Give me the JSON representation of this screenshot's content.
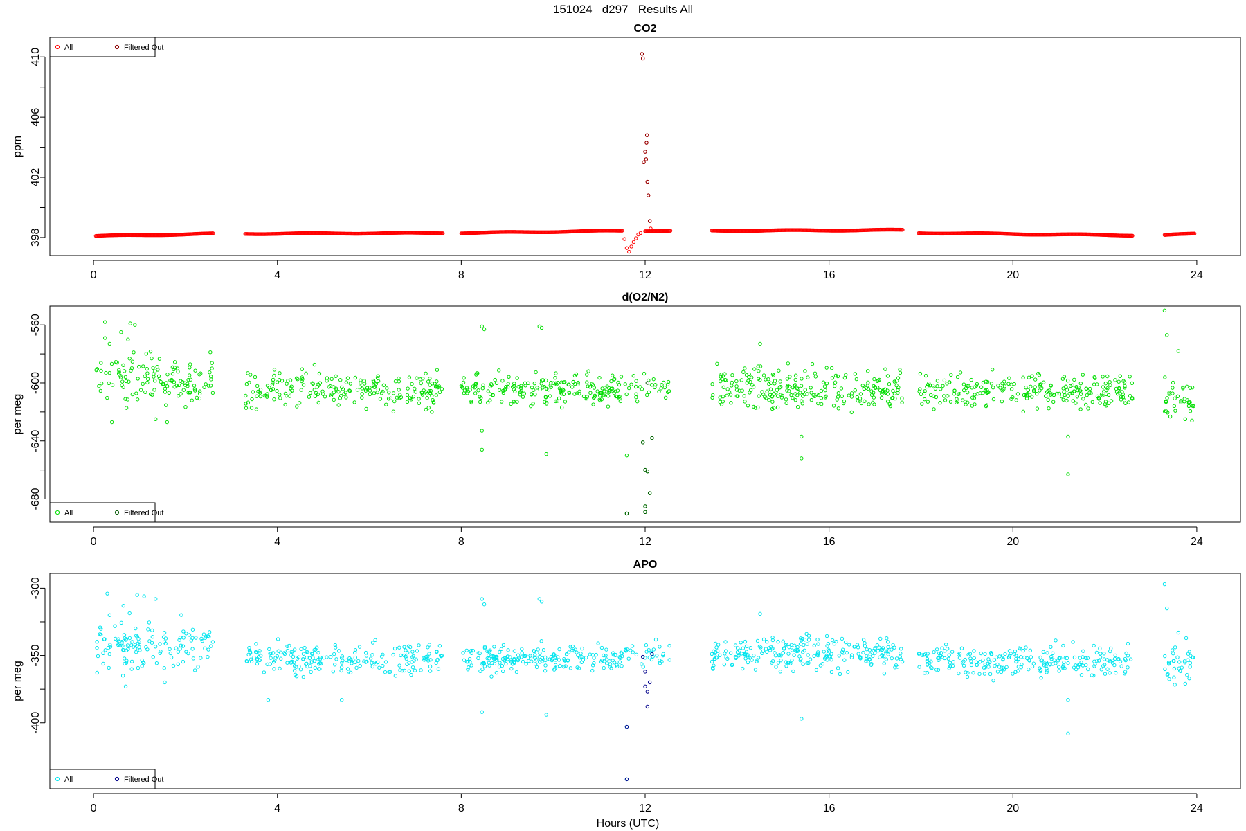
{
  "figure_title": "151024   d297   Results All",
  "xlabel": "Hours (UTC)",
  "chart_data": [
    {
      "type": "scatter",
      "title": "CO2",
      "ylabel": "ppm",
      "xlim": [
        -0.95,
        24.95
      ],
      "ylim": [
        396.8,
        411.3
      ],
      "yticks": [
        398,
        402,
        406,
        410
      ],
      "xticks": [
        0,
        4,
        8,
        12,
        16,
        20,
        24
      ],
      "legend": {
        "position": "top-left",
        "entries": [
          "All",
          "Filtered Out"
        ]
      },
      "colors": {
        "all": "#ff0000",
        "filtered": "#8b0000"
      },
      "base_segments": [
        {
          "x": [
            0.05,
            2.6
          ],
          "y": [
            398.1,
            398.25
          ]
        },
        {
          "x": [
            3.3,
            7.6
          ],
          "y": [
            398.25,
            398.3
          ]
        },
        {
          "x": [
            8.0,
            11.5
          ],
          "y": [
            398.3,
            398.45
          ]
        },
        {
          "x": [
            12.0,
            12.55
          ],
          "y": [
            398.45,
            398.45
          ]
        },
        {
          "x": [
            13.45,
            17.6
          ],
          "y": [
            398.45,
            398.5
          ]
        },
        {
          "x": [
            17.95,
            22.6
          ],
          "y": [
            398.3,
            398.15
          ]
        },
        {
          "x": [
            23.3,
            23.95
          ],
          "y": [
            398.15,
            398.25
          ]
        }
      ],
      "series": [
        {
          "name": "All",
          "points": [
            [
              11.55,
              397.9
            ],
            [
              11.6,
              397.3
            ],
            [
              11.65,
              397.05
            ],
            [
              11.7,
              397.4
            ],
            [
              11.75,
              397.7
            ],
            [
              11.8,
              397.95
            ],
            [
              11.85,
              398.2
            ],
            [
              11.9,
              398.3
            ],
            [
              11.93,
              410.2
            ],
            [
              11.95,
              409.9
            ],
            [
              11.97,
              403.0
            ],
            [
              12.0,
              403.7
            ],
            [
              12.02,
              403.2
            ],
            [
              12.03,
              404.3
            ],
            [
              12.04,
              404.8
            ],
            [
              12.05,
              401.7
            ],
            [
              12.07,
              400.8
            ],
            [
              12.1,
              399.1
            ],
            [
              12.12,
              398.6
            ]
          ]
        },
        {
          "name": "Filtered Out",
          "points": [
            [
              11.93,
              410.2
            ],
            [
              11.95,
              409.9
            ],
            [
              11.97,
              403.0
            ],
            [
              12.0,
              403.7
            ],
            [
              12.02,
              403.2
            ],
            [
              12.03,
              404.3
            ],
            [
              12.04,
              404.8
            ],
            [
              12.05,
              401.7
            ],
            [
              12.07,
              400.8
            ],
            [
              12.1,
              399.1
            ]
          ]
        }
      ]
    },
    {
      "type": "scatter",
      "title": "d(O2/N2)",
      "ylabel": "per meg",
      "xlim": [
        -0.95,
        24.95
      ],
      "ylim": [
        -696,
        -547
      ],
      "yticks": [
        -560,
        -600,
        -640,
        -680
      ],
      "xticks": [
        0,
        4,
        8,
        12,
        16,
        20,
        24
      ],
      "legend": {
        "position": "bottom-left",
        "entries": [
          "All",
          "Filtered Out"
        ]
      },
      "colors": {
        "all": "#00dd00",
        "filtered": "#005500"
      },
      "scatter_segments": [
        {
          "x": [
            0.05,
            2.6
          ],
          "center": -598,
          "spread": 12,
          "n": 130
        },
        {
          "x": [
            3.3,
            7.6
          ],
          "center": -604,
          "spread": 9,
          "n": 210
        },
        {
          "x": [
            8.0,
            11.5
          ],
          "center": -605,
          "spread": 8,
          "n": 200
        },
        {
          "x": [
            11.55,
            12.55
          ],
          "center": -604,
          "spread": 6,
          "n": 30
        },
        {
          "x": [
            13.45,
            17.6
          ],
          "center": -604,
          "spread": 10,
          "n": 240
        },
        {
          "x": [
            17.95,
            22.6
          ],
          "center": -605,
          "spread": 9,
          "n": 240
        },
        {
          "x": [
            23.3,
            23.95
          ],
          "center": -612,
          "spread": 10,
          "n": 35
        }
      ],
      "series": [
        {
          "name": "All",
          "points": [
            [
              0.25,
              -569
            ],
            [
              0.35,
              -573
            ],
            [
              0.25,
              -558
            ],
            [
              0.6,
              -565
            ],
            [
              0.8,
              -559
            ],
            [
              0.9,
              -560
            ],
            [
              0.75,
              -570
            ],
            [
              0.4,
              -627
            ],
            [
              1.35,
              -625
            ],
            [
              1.6,
              -627
            ],
            [
              8.45,
              -561
            ],
            [
              8.5,
              -563
            ],
            [
              8.45,
              -633
            ],
            [
              8.45,
              -646
            ],
            [
              9.7,
              -561
            ],
            [
              9.75,
              -562
            ],
            [
              9.85,
              -649
            ],
            [
              14.5,
              -573
            ],
            [
              15.4,
              -637
            ],
            [
              15.4,
              -652
            ],
            [
              21.2,
              -637
            ],
            [
              21.2,
              -663
            ],
            [
              23.3,
              -550
            ],
            [
              23.35,
              -567
            ],
            [
              23.6,
              -578
            ],
            [
              23.75,
              -625
            ],
            [
              11.6,
              -650
            ],
            [
              11.6,
              -690
            ],
            [
              11.95,
              -641
            ],
            [
              12.0,
              -689
            ],
            [
              12.0,
              -685
            ],
            [
              12.05,
              -661
            ],
            [
              12.1,
              -676
            ],
            [
              12.15,
              -638
            ],
            [
              12.0,
              -660
            ]
          ]
        },
        {
          "name": "Filtered Out",
          "points": [
            [
              11.6,
              -690
            ],
            [
              11.95,
              -641
            ],
            [
              12.0,
              -689
            ],
            [
              12.0,
              -685
            ],
            [
              12.05,
              -661
            ],
            [
              12.1,
              -676
            ],
            [
              12.15,
              -638
            ],
            [
              12.0,
              -660
            ],
            [
              12.05,
              -600
            ]
          ]
        }
      ]
    },
    {
      "type": "scatter",
      "title": "APO",
      "ylabel": "per meg",
      "xlim": [
        -0.95,
        24.95
      ],
      "ylim": [
        -449,
        -289
      ],
      "yticks": [
        -300,
        -350,
        -400
      ],
      "xticks": [
        0,
        4,
        8,
        12,
        16,
        20,
        24
      ],
      "legend": {
        "position": "bottom-left",
        "entries": [
          "All",
          "Filtered Out"
        ]
      },
      "colors": {
        "all": "#00e5ee",
        "filtered": "#00008b"
      },
      "scatter_segments": [
        {
          "x": [
            0.05,
            2.6
          ],
          "center": -343,
          "spread": 12,
          "n": 130
        },
        {
          "x": [
            3.3,
            7.6
          ],
          "center": -352,
          "spread": 8,
          "n": 210
        },
        {
          "x": [
            8.0,
            11.5
          ],
          "center": -353,
          "spread": 7,
          "n": 200
        },
        {
          "x": [
            11.55,
            12.55
          ],
          "center": -350,
          "spread": 6,
          "n": 30
        },
        {
          "x": [
            13.45,
            17.6
          ],
          "center": -348,
          "spread": 9,
          "n": 240
        },
        {
          "x": [
            17.95,
            22.6
          ],
          "center": -354,
          "spread": 8,
          "n": 240
        },
        {
          "x": [
            23.3,
            23.95
          ],
          "center": -357,
          "spread": 10,
          "n": 35
        }
      ],
      "series": [
        {
          "name": "All",
          "points": [
            [
              0.3,
              -304
            ],
            [
              0.35,
              -320
            ],
            [
              0.65,
              -313
            ],
            [
              0.95,
              -305
            ],
            [
              1.1,
              -306
            ],
            [
              1.35,
              -308
            ],
            [
              0.7,
              -373
            ],
            [
              1.55,
              -370
            ],
            [
              3.8,
              -383
            ],
            [
              5.4,
              -383
            ],
            [
              8.45,
              -308
            ],
            [
              8.5,
              -312
            ],
            [
              8.45,
              -392
            ],
            [
              9.7,
              -308
            ],
            [
              9.75,
              -310
            ],
            [
              9.85,
              -394
            ],
            [
              14.5,
              -319
            ],
            [
              15.4,
              -397
            ],
            [
              21.2,
              -383
            ],
            [
              21.2,
              -408
            ],
            [
              23.3,
              -297
            ],
            [
              23.35,
              -315
            ],
            [
              23.6,
              -333
            ],
            [
              23.75,
              -371
            ],
            [
              11.6,
              -403
            ],
            [
              11.6,
              -442
            ]
          ]
        },
        {
          "name": "Filtered Out",
          "points": [
            [
              11.6,
              -403
            ],
            [
              11.6,
              -442
            ],
            [
              11.95,
              -351
            ],
            [
              12.0,
              -362
            ],
            [
              12.0,
              -373
            ],
            [
              12.05,
              -377
            ],
            [
              12.05,
              -388
            ],
            [
              12.1,
              -370
            ],
            [
              12.15,
              -349
            ]
          ]
        }
      ]
    }
  ]
}
